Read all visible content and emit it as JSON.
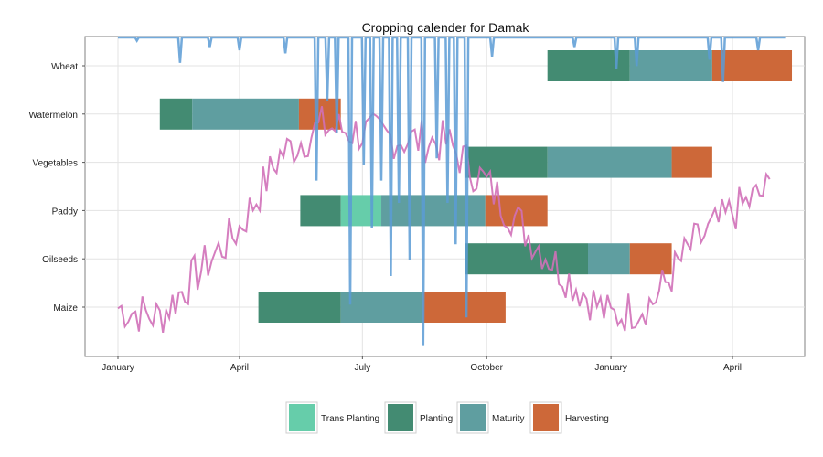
{
  "chart_data": {
    "type": "gantt",
    "title": "Cropping calender for Damak",
    "xlabel": "",
    "ylabel": "",
    "x_range": [
      "2014-01-01",
      "2015-05-10"
    ],
    "x_ticks": [
      {
        "date": "2014-01-01",
        "label": "January"
      },
      {
        "date": "2014-04-01",
        "label": "April"
      },
      {
        "date": "2014-07-01",
        "label": "July"
      },
      {
        "date": "2014-10-01",
        "label": "October"
      },
      {
        "date": "2015-01-01",
        "label": "January"
      },
      {
        "date": "2015-04-01",
        "label": "April"
      }
    ],
    "categories": [
      "Maize",
      "Oilseeds",
      "Paddy",
      "Vegetables",
      "Watermelon",
      "Wheat"
    ],
    "stage_colors": {
      "Trans Planting": "#66cdaa",
      "Planting": "#438b72",
      "Maturity": "#5f9ea0",
      "Harvesting": "#cd6839"
    },
    "legend": {
      "position": "bottom",
      "entries": [
        "Trans Planting",
        "Planting",
        "Maturity",
        "Harvesting"
      ]
    },
    "grid": true,
    "series": [
      {
        "crop": "Wheat",
        "stages": [
          {
            "stage": "Planting",
            "start": "2014-11-15",
            "end": "2015-01-15"
          },
          {
            "stage": "Maturity",
            "start": "2015-01-15",
            "end": "2015-03-17"
          },
          {
            "stage": "Harvesting",
            "start": "2015-03-17",
            "end": "2015-05-15"
          }
        ]
      },
      {
        "crop": "Watermelon",
        "stages": [
          {
            "stage": "Planting",
            "start": "2014-02-01",
            "end": "2014-02-25"
          },
          {
            "stage": "Maturity",
            "start": "2014-02-25",
            "end": "2014-05-15"
          },
          {
            "stage": "Harvesting",
            "start": "2014-05-15",
            "end": "2014-06-15"
          }
        ]
      },
      {
        "crop": "Vegetables",
        "stages": [
          {
            "stage": "Planting",
            "start": "2014-09-15",
            "end": "2014-11-15"
          },
          {
            "stage": "Maturity",
            "start": "2014-11-15",
            "end": "2015-02-15"
          },
          {
            "stage": "Harvesting",
            "start": "2015-02-15",
            "end": "2015-03-17"
          }
        ]
      },
      {
        "crop": "Paddy",
        "stages": [
          {
            "stage": "Planting",
            "start": "2014-05-16",
            "end": "2014-06-15"
          },
          {
            "stage": "Trans Planting",
            "start": "2014-06-15",
            "end": "2014-07-15"
          },
          {
            "stage": "Maturity",
            "start": "2014-07-15",
            "end": "2014-09-30"
          },
          {
            "stage": "Harvesting",
            "start": "2014-09-30",
            "end": "2014-11-15"
          }
        ]
      },
      {
        "crop": "Oilseeds",
        "stages": [
          {
            "stage": "Planting",
            "start": "2014-09-15",
            "end": "2014-12-15"
          },
          {
            "stage": "Maturity",
            "start": "2014-12-15",
            "end": "2015-01-15"
          },
          {
            "stage": "Harvesting",
            "start": "2015-01-15",
            "end": "2015-02-15"
          }
        ]
      },
      {
        "crop": "Maize",
        "stages": [
          {
            "stage": "Planting",
            "start": "2014-04-15",
            "end": "2014-06-15"
          },
          {
            "stage": "Maturity",
            "start": "2014-06-15",
            "end": "2014-08-15"
          },
          {
            "stage": "Harvesting",
            "start": "2014-08-15",
            "end": "2014-10-15"
          }
        ]
      }
    ],
    "overlay_lines": [
      {
        "color": "#d070b8",
        "description_hidden": true,
        "trend": [
          {
            "date": "2014-01-01",
            "value": 0.15
          },
          {
            "date": "2014-02-01",
            "value": 0.12
          },
          {
            "date": "2014-03-01",
            "value": 0.26
          },
          {
            "date": "2014-04-01",
            "value": 0.4
          },
          {
            "date": "2014-05-01",
            "value": 0.63
          },
          {
            "date": "2014-06-01",
            "value": 0.72
          },
          {
            "date": "2014-07-01",
            "value": 0.7
          },
          {
            "date": "2014-08-01",
            "value": 0.68
          },
          {
            "date": "2014-09-01",
            "value": 0.67
          },
          {
            "date": "2014-10-01",
            "value": 0.54
          },
          {
            "date": "2014-11-01",
            "value": 0.38
          },
          {
            "date": "2014-12-01",
            "value": 0.24
          },
          {
            "date": "2015-01-01",
            "value": 0.12
          },
          {
            "date": "2015-02-01",
            "value": 0.17
          },
          {
            "date": "2015-03-01",
            "value": 0.34
          },
          {
            "date": "2015-04-01",
            "value": 0.45
          },
          {
            "date": "2015-05-01",
            "value": 0.53
          }
        ]
      },
      {
        "color": "#5b9bd5",
        "description_hidden": true,
        "trend": [
          {
            "date": "2014-01-01",
            "value": 1.0
          },
          {
            "date": "2015-05-10",
            "value": 1.0
          }
        ],
        "dips": [
          {
            "date": "2014-01-15",
            "value": 0.99
          },
          {
            "date": "2014-02-16",
            "value": 0.92
          },
          {
            "date": "2014-03-10",
            "value": 0.97
          },
          {
            "date": "2014-04-01",
            "value": 0.96
          },
          {
            "date": "2014-05-05",
            "value": 0.95
          },
          {
            "date": "2014-05-28",
            "value": 0.55
          },
          {
            "date": "2014-06-05",
            "value": 0.8
          },
          {
            "date": "2014-06-12",
            "value": 0.7
          },
          {
            "date": "2014-06-22",
            "value": 0.16
          },
          {
            "date": "2014-07-02",
            "value": 0.6
          },
          {
            "date": "2014-07-08",
            "value": 0.4
          },
          {
            "date": "2014-07-15",
            "value": 0.55
          },
          {
            "date": "2014-07-22",
            "value": 0.25
          },
          {
            "date": "2014-07-28",
            "value": 0.48
          },
          {
            "date": "2014-08-05",
            "value": 0.3
          },
          {
            "date": "2014-08-15",
            "value": 0.03
          },
          {
            "date": "2014-08-25",
            "value": 0.62
          },
          {
            "date": "2014-09-02",
            "value": 0.48
          },
          {
            "date": "2014-09-08",
            "value": 0.35
          },
          {
            "date": "2014-09-16",
            "value": 0.12
          },
          {
            "date": "2014-10-05",
            "value": 0.94
          },
          {
            "date": "2014-12-05",
            "value": 0.97
          },
          {
            "date": "2015-01-05",
            "value": 0.9
          },
          {
            "date": "2015-01-20",
            "value": 0.91
          },
          {
            "date": "2015-03-15",
            "value": 0.93
          },
          {
            "date": "2015-03-25",
            "value": 0.86
          },
          {
            "date": "2015-04-20",
            "value": 0.96
          }
        ]
      }
    ]
  }
}
